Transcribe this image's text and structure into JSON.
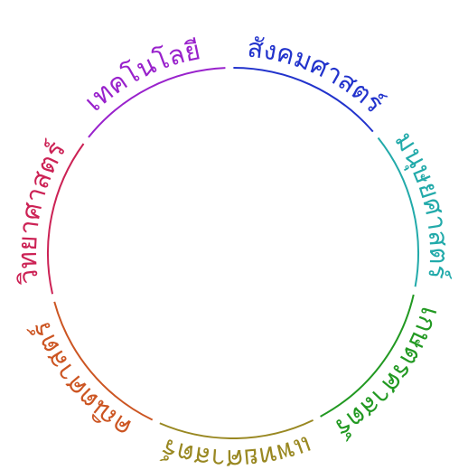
{
  "segments": [
    {
      "label": "วิทยาศาสตร์",
      "color": "#cc2255"
    },
    {
      "label": "เทคโนโลยี",
      "color": "#9922cc"
    },
    {
      "label": "สังคมศาสตร์",
      "color": "#2233cc"
    },
    {
      "label": "มนุษยศาสตร์",
      "color": "#22aaaa"
    },
    {
      "label": "เกษตรศาสตร์",
      "color": "#229922"
    },
    {
      "label": "แพทยศาสตร์",
      "color": "#998822"
    },
    {
      "label": "คณิตศาสตร์",
      "color": "#cc5522"
    }
  ]
}
